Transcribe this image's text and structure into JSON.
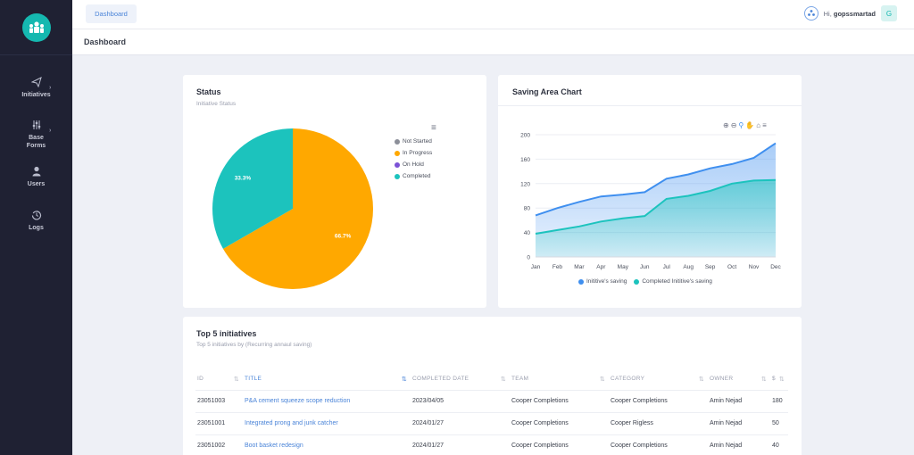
{
  "sidebar": {
    "items": [
      {
        "label": "Initiatives",
        "icon": "paper-plane-icon",
        "has_arrow": true
      },
      {
        "label": "Base Forms",
        "icon": "sliders-icon",
        "has_arrow": true
      },
      {
        "label": "Users",
        "icon": "user-icon",
        "has_arrow": false
      },
      {
        "label": "Logs",
        "icon": "history-icon",
        "has_arrow": false
      }
    ]
  },
  "header": {
    "breadcrumb": "Dashboard",
    "greeting": "Hi,",
    "username": "gopssmartad",
    "avatar_letter": "G"
  },
  "page": {
    "title": "Dashboard"
  },
  "status_card": {
    "title": "Status",
    "subtitle": "Initiative Status",
    "legend": [
      {
        "label": "Not Started",
        "color": "#8c8f99"
      },
      {
        "label": "In Progress",
        "color": "#ffa800"
      },
      {
        "label": "On Hold",
        "color": "#7b52d6"
      },
      {
        "label": "Completed",
        "color": "#1cc3bd"
      }
    ],
    "slice_labels": {
      "in_progress": "66.7%",
      "completed": "33.3%"
    }
  },
  "saving_card": {
    "title": "Saving Area Chart",
    "legend": [
      {
        "label": "Inititive's saving",
        "color": "#3f8fef"
      },
      {
        "label": "Completed Inititive's saving",
        "color": "#1cc3bd"
      }
    ]
  },
  "chart_data": [
    {
      "type": "pie",
      "categories": [
        "Not Started",
        "In Progress",
        "On Hold",
        "Completed"
      ],
      "values": [
        0,
        66.7,
        0,
        33.3
      ],
      "colors": [
        "#8c8f99",
        "#ffa800",
        "#7b52d6",
        "#1cc3bd"
      ],
      "title": "Status",
      "subtitle": "Initiative Status",
      "legend": "right"
    },
    {
      "type": "area",
      "title": "Saving Area Chart",
      "x": [
        "Jan",
        "Feb",
        "Mar",
        "Apr",
        "May",
        "Jun",
        "Jul",
        "Aug",
        "Sep",
        "Oct",
        "Nov",
        "Dec"
      ],
      "series": [
        {
          "name": "Inititive's saving",
          "values": [
            68,
            80,
            90,
            99,
            102,
            106,
            128,
            135,
            145,
            152,
            162,
            186
          ],
          "color": "#3f8fef"
        },
        {
          "name": "Completed Inititive's saving",
          "values": [
            38,
            44,
            50,
            58,
            63,
            67,
            95,
            100,
            108,
            120,
            125,
            126
          ],
          "color": "#1cc3bd"
        }
      ],
      "ylim": [
        0,
        200
      ],
      "yticks": [
        0,
        40,
        80,
        120,
        160,
        200
      ],
      "grid": true,
      "legend": "bottom"
    }
  ],
  "top5": {
    "title": "Top 5 initiatives",
    "subtitle": "Top 5 initiatives by (Recurring annaul saving)",
    "columns": [
      "ID",
      "TITLE",
      "COMPLETED DATE",
      "TEAM",
      "CATEGORY",
      "OWNER",
      "$"
    ],
    "rows": [
      [
        "23051003",
        "P&A cement squeeze scope reduction",
        "2023/04/05",
        "Cooper Completions",
        "Cooper Completions",
        "Amin Nejad",
        "180"
      ],
      [
        "23051001",
        "Integrated prong and junk catcher",
        "2024/01/27",
        "Cooper Completions",
        "Cooper Rigless",
        "Amin Nejad",
        "50"
      ],
      [
        "23051002",
        "Boot basket redesign",
        "2024/01/27",
        "Cooper Completions",
        "Cooper Completions",
        "Amin Nejad",
        "40"
      ]
    ]
  }
}
